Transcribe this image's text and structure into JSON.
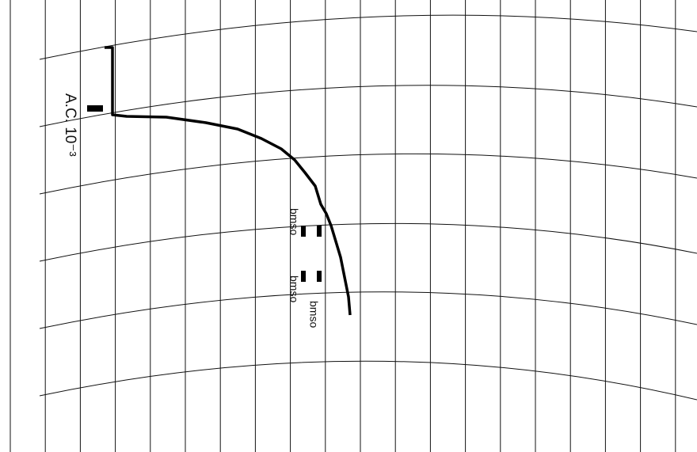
{
  "annotations": {
    "scale": "A.C. 10⁻³",
    "markers": [
      "bmso",
      "bmso",
      "bmso"
    ]
  }
}
